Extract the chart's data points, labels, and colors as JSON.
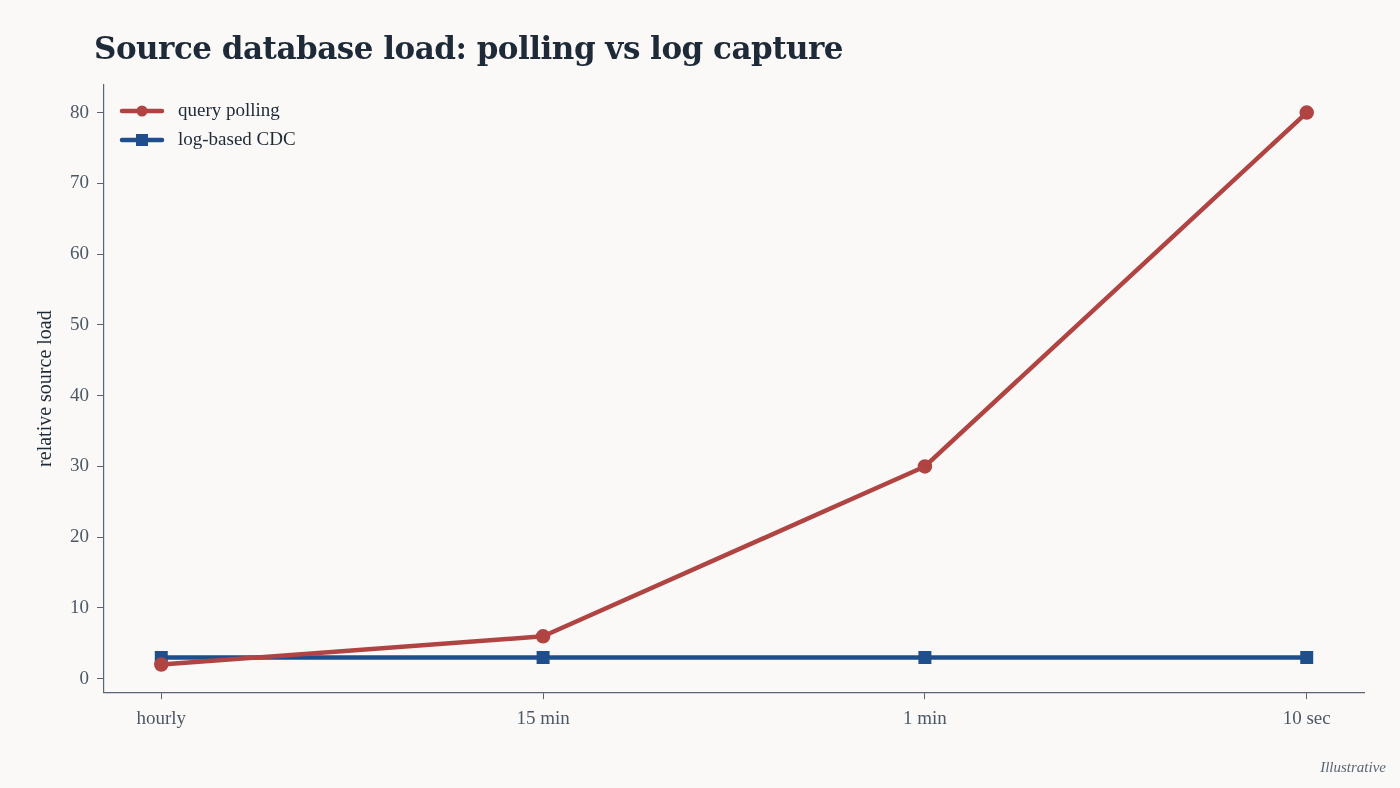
{
  "chart_data": {
    "type": "line",
    "title": "Source database load: polling vs log capture",
    "ylabel": "relative source load",
    "categories": [
      "hourly",
      "15 min",
      "1 min",
      "10 sec"
    ],
    "series": [
      {
        "name": "query polling",
        "color": "#b04442",
        "values": [
          2,
          6,
          30,
          80
        ],
        "marker": "circle"
      },
      {
        "name": "log-based CDC",
        "color": "#1f4e8c",
        "values": [
          3,
          3,
          3,
          3
        ],
        "marker": "square"
      }
    ],
    "ylim": [
      -1.9,
      83.9
    ],
    "yticks": [
      0,
      10,
      20,
      30,
      40,
      50,
      60,
      70,
      80
    ],
    "grid": false,
    "legend": "top left",
    "line_style": "solid",
    "annotations": [
      "Illustrative"
    ]
  }
}
